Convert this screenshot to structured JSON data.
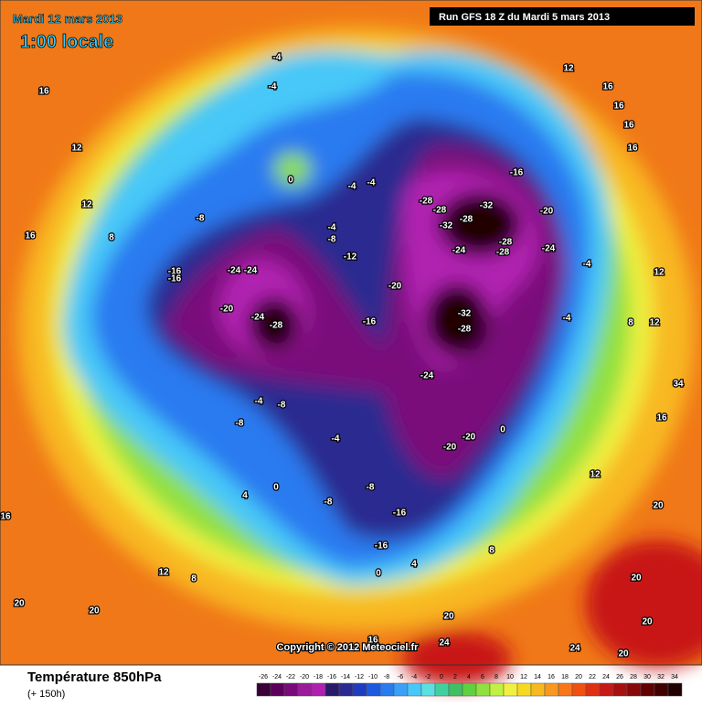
{
  "header": {
    "date": "Mardi 12 mars 2013",
    "time": "1:00 locale",
    "run": "Run GFS 18 Z du Mardi 5 mars 2013"
  },
  "copyright": "Copyright © 2012 Meteociel.fr",
  "footer": {
    "title": "Température 850hPa",
    "lead": "(+ 150h)"
  },
  "scale": {
    "labels": [
      -26,
      -24,
      -22,
      -20,
      -18,
      -16,
      -14,
      -12,
      -10,
      -8,
      -6,
      -4,
      -2,
      0,
      2,
      4,
      6,
      8,
      10,
      12,
      14,
      16,
      18,
      20,
      22,
      24,
      26,
      28,
      30,
      32,
      34
    ],
    "colors": [
      "#3a0038",
      "#5a005a",
      "#7a0a7a",
      "#9a1a9a",
      "#b020b0",
      "#2a1a6a",
      "#2a2a90",
      "#1e3cc0",
      "#1e5ae0",
      "#2a7af0",
      "#3aa0f8",
      "#46c8f8",
      "#5ae0e0",
      "#40d0a0",
      "#40c060",
      "#60d040",
      "#90e040",
      "#c0f040",
      "#f0f040",
      "#f8d820",
      "#f8b820",
      "#f89820",
      "#f87818",
      "#f05010",
      "#e03010",
      "#c81818",
      "#a81010",
      "#880808",
      "#600000",
      "#400000",
      "#200000"
    ]
  },
  "contour_labels": [
    -4,
    -4,
    16,
    12,
    12,
    16,
    16,
    16,
    16,
    0,
    -4,
    -4,
    -8,
    12,
    16,
    8,
    -4,
    -8,
    -12,
    -16,
    -16,
    -24,
    -24,
    -20,
    -24,
    -28,
    -16,
    -20,
    -28,
    -28,
    -32,
    -28,
    -32,
    -16,
    -20,
    -24,
    -28,
    -28,
    -24,
    -32,
    -28,
    -4,
    12,
    8,
    12,
    -4,
    -24,
    -20,
    -20,
    0,
    -4,
    -8,
    -8,
    -4,
    0,
    -8,
    -8,
    -16,
    -16,
    0,
    4,
    8,
    12,
    16,
    20,
    20,
    20,
    12,
    8,
    20,
    20,
    16,
    20,
    24,
    24,
    20,
    4,
    34,
    16
  ]
}
